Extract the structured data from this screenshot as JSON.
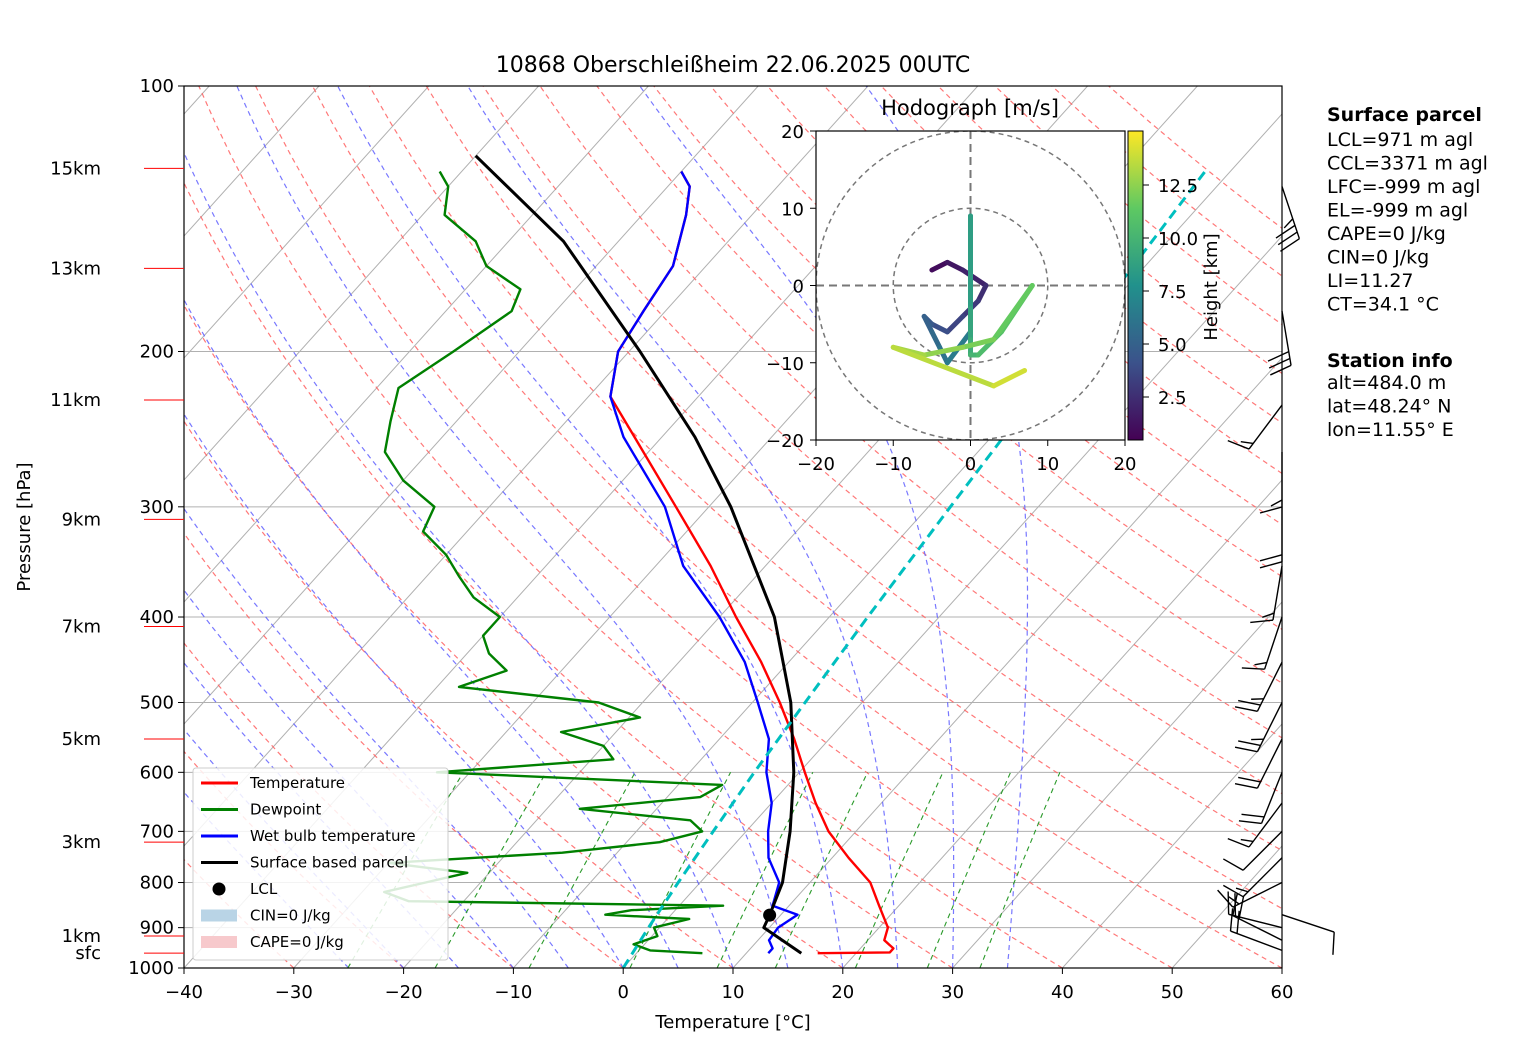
{
  "title": "10868 Oberschleißheim 22.06.2025 00UTC",
  "axes": {
    "xlabel": "Temperature [°C]",
    "ylabel": "Pressure [hPa]",
    "x_ticks": [
      "−40",
      "−30",
      "−20",
      "−10",
      "0",
      "10",
      "20",
      "30",
      "40",
      "50",
      "60"
    ],
    "y_ticks": [
      "100",
      "200",
      "300",
      "400",
      "500",
      "600",
      "700",
      "800",
      "900",
      "1000"
    ],
    "height_labels": [
      "15km",
      "13km",
      "11km",
      "9km",
      "7km",
      "5km",
      "3km",
      "1km",
      "sfc"
    ]
  },
  "legend": {
    "items": [
      {
        "label": "Temperature",
        "color": "#ff0000",
        "kind": "line"
      },
      {
        "label": "Dewpoint",
        "color": "#008000",
        "kind": "line"
      },
      {
        "label": "Wet bulb temperature",
        "color": "#0000ff",
        "kind": "line"
      },
      {
        "label": "Surface based parcel",
        "color": "#000000",
        "kind": "line"
      },
      {
        "label": "LCL",
        "color": "#000000",
        "kind": "dot"
      },
      {
        "label": "CIN=0 J/kg",
        "color": "#b9d4e6",
        "kind": "patch"
      },
      {
        "label": "CAPE=0 J/kg",
        "color": "#f7c9cc",
        "kind": "patch"
      }
    ]
  },
  "hodograph": {
    "title": "Hodograph [m/s]",
    "ticks": [
      "20",
      "10",
      "0",
      "−10",
      "−20"
    ],
    "x_ticks": [
      "−20",
      "−10",
      "0",
      "10",
      "20"
    ],
    "colorbar_label": "Height [km]",
    "colorbar_ticks": [
      "12.5",
      "10.0",
      "7.5",
      "5.0",
      "2.5"
    ]
  },
  "surface_parcel": {
    "title": "Surface parcel",
    "lines": [
      "LCL=971 m agl",
      "CCL=3371 m agl",
      "LFC=-999 m agl",
      "EL=-999 m agl",
      "CAPE=0 J/kg",
      "CIN=0 J/kg",
      "LI=11.27",
      "CT=34.1 °C"
    ]
  },
  "station_info": {
    "title": "Station info",
    "lines": [
      "alt=484.0 m",
      "lat=48.24° N",
      "lon=11.55° E"
    ]
  },
  "colors": {
    "temperature": "#ff0000",
    "dewpoint": "#008000",
    "wetbulb": "#0000ff",
    "parcel": "#000000",
    "isotherm": "#b0b0b0",
    "dry_adiabat": "#ff6060",
    "moist_adiabat": "#6060ff",
    "mixing_ratio": "#2a9a2a",
    "ccl_line": "#00bfbf",
    "height_label": "#ff0000"
  },
  "chart_data": {
    "type": "line",
    "xlim": [
      -40,
      60
    ],
    "ylim_hPa": [
      1000,
      100
    ],
    "y_scale": "log",
    "skew": "skew-T",
    "heights_km": [
      15,
      13,
      11,
      9,
      7,
      5,
      3,
      1,
      0
    ],
    "height_pressures_hPa": [
      124,
      161,
      227,
      310,
      410,
      550,
      720,
      920,
      962
    ],
    "series": [
      {
        "name": "Temperature",
        "pressure": [
          962,
          960,
          950,
          930,
          900,
          850,
          800,
          750,
          700,
          650,
          600,
          550,
          500,
          450,
          400,
          350,
          300,
          250,
          225,
          200,
          180,
          160,
          140,
          130,
          125
        ],
        "temperature": [
          16.5,
          23.0,
          23.0,
          21.5,
          20.8,
          18.2,
          15.5,
          11.5,
          7.5,
          4.0,
          0.5,
          -3.2,
          -7.5,
          -12.5,
          -18.5,
          -25.0,
          -33.0,
          -42.5,
          -48.0,
          -51.0,
          -52.0,
          -53.0,
          -56.0,
          -58.0,
          -60.0
        ]
      },
      {
        "name": "Wet bulb temperature",
        "pressure": [
          962,
          950,
          930,
          900,
          870,
          850,
          800,
          750,
          700,
          650,
          600,
          550,
          500,
          450,
          400,
          350,
          300,
          250,
          225,
          200,
          180,
          160,
          140,
          130,
          125
        ],
        "temperature": [
          12.0,
          12.0,
          11.0,
          10.8,
          11.5,
          8.5,
          7.2,
          4.2,
          2.0,
          0.0,
          -3.0,
          -5.5,
          -9.5,
          -14.0,
          -20.0,
          -27.5,
          -34.0,
          -43.5,
          -48.0,
          -51.0,
          -52.0,
          -53.0,
          -56.0,
          -58.0,
          -60.0
        ]
      },
      {
        "name": "Dewpoint",
        "pressure": [
          962,
          955,
          940,
          920,
          900,
          880,
          870,
          860,
          850,
          840,
          820,
          800,
          780,
          760,
          740,
          720,
          700,
          680,
          660,
          640,
          620,
          600,
          580,
          560,
          540,
          520,
          500,
          480,
          460,
          440,
          420,
          400,
          380,
          360,
          340,
          320,
          300,
          280,
          260,
          240,
          220,
          200,
          180,
          170,
          160,
          150,
          140,
          130,
          125
        ],
        "temperature": [
          6.0,
          1.0,
          -1.0,
          0.5,
          -0.5,
          2.0,
          -6.0,
          -4.0,
          4.0,
          -25.0,
          -28.0,
          -25.0,
          -22.0,
          -30.0,
          -15.0,
          -7.0,
          -4.0,
          -6.0,
          -17.0,
          -7.0,
          -6.0,
          -33.0,
          -18.0,
          -20.0,
          -25.0,
          -19.0,
          -24.0,
          -38.0,
          -35.0,
          -38.0,
          -40.0,
          -40.0,
          -44.0,
          -47.0,
          -50.0,
          -54.0,
          -55.0,
          -60.0,
          -64.0,
          -66.0,
          -68.0,
          -66.0,
          -64.0,
          -65.0,
          -70.0,
          -73.0,
          -78.0,
          -80.0,
          -82.0
        ]
      },
      {
        "name": "Surface based parcel",
        "pressure": [
          962,
          900,
          871,
          800,
          700,
          600,
          500,
          400,
          300,
          250,
          200,
          150,
          120
        ],
        "temperature": [
          15.0,
          9.5,
          9.0,
          7.5,
          4.0,
          -0.5,
          -6.5,
          -15.0,
          -28.0,
          -37.0,
          -49.0,
          -65.0,
          -80.0
        ]
      },
      {
        "name": "CCL line",
        "pressure": [
          1000,
          900,
          800,
          700,
          600,
          500,
          400,
          300,
          250,
          200,
          150,
          125
        ],
        "temperature": [
          0.0,
          -1.0,
          -2.0,
          -3.0,
          -4.1,
          -5.2,
          -6.5,
          -8.0,
          -8.9,
          -10.0,
          -11.4,
          -12.3
        ]
      }
    ],
    "lcl": {
      "pressure": 871,
      "temperature": 9.0
    },
    "wind_barbs": [
      {
        "pressure": 955,
        "u": 8,
        "v": -3,
        "kt": 20
      },
      {
        "pressure": 930,
        "u": 8,
        "v": -4,
        "kt": 20
      },
      {
        "pressure": 900,
        "u": 8,
        "v": -2,
        "kt": 20
      },
      {
        "pressure": 870,
        "u": -6,
        "v": 2,
        "kt": 10
      },
      {
        "pressure": 800,
        "u": 6,
        "v": 3,
        "kt": 15
      },
      {
        "pressure": 750,
        "u": 5,
        "v": 5,
        "kt": 15
      },
      {
        "pressure": 700,
        "u": 4,
        "v": 4,
        "kt": 10
      },
      {
        "pressure": 650,
        "u": 3,
        "v": 4,
        "kt": 15
      },
      {
        "pressure": 600,
        "u": 2,
        "v": 5,
        "kt": 20
      },
      {
        "pressure": 550,
        "u": 3,
        "v": 6,
        "kt": 20
      },
      {
        "pressure": 500,
        "u": 3,
        "v": 6,
        "kt": 25
      },
      {
        "pressure": 450,
        "u": 3,
        "v": 6,
        "kt": 25
      },
      {
        "pressure": 400,
        "u": 2,
        "v": 6,
        "kt": 15
      },
      {
        "pressure": 350,
        "u": 1,
        "v": 6,
        "kt": 15
      },
      {
        "pressure": 300,
        "u": 0,
        "v": 6,
        "kt": 20
      },
      {
        "pressure": 260,
        "u": 0,
        "v": 6,
        "kt": 15
      },
      {
        "pressure": 230,
        "u": 3,
        "v": 4,
        "kt": 15
      },
      {
        "pressure": 180,
        "u": -1,
        "v": 6,
        "kt": 30
      },
      {
        "pressure": 130,
        "u": -2,
        "v": 6,
        "kt": 35
      }
    ],
    "hodograph_series": [
      {
        "height_km": [
          0.5,
          1.0,
          1.5,
          2.0,
          2.5,
          3.0,
          3.5,
          4.0,
          4.5,
          5.0,
          5.5,
          6.0,
          6.5,
          7.0,
          7.5,
          8.0,
          8.5,
          9.0,
          9.5,
          10.0,
          10.5,
          11.0,
          11.5,
          12.0,
          12.5,
          13.0,
          13.5,
          14.0
        ],
        "u": [
          -5,
          -3,
          -1,
          2,
          1,
          -1,
          -3,
          -5,
          -6,
          -5,
          -4,
          -3,
          0,
          0,
          0,
          0,
          0,
          0,
          0,
          1,
          4,
          8,
          3,
          -1,
          -6,
          -10,
          3,
          7
        ],
        "v": [
          2,
          3,
          2,
          0,
          -2,
          -4,
          -6,
          -5,
          -4,
          -6,
          -8,
          -10,
          -6,
          2,
          6,
          9,
          -3,
          -7,
          -9,
          -9,
          -6,
          0,
          -7,
          -8,
          -9,
          -8,
          -13,
          -11
        ]
      }
    ]
  }
}
